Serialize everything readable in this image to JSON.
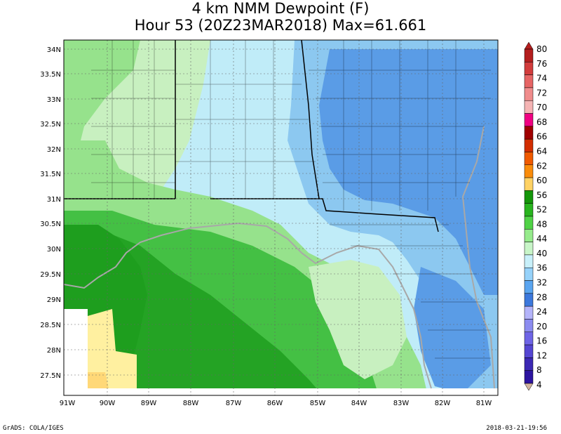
{
  "title": {
    "line1": "4 km NMM Dewpoint (F)",
    "line2": "Hour 53 (20Z23MAR2018) Max=61.661"
  },
  "map": {
    "lat_labels": [
      "34N",
      "33.5N",
      "33N",
      "32.5N",
      "32N",
      "31.5N",
      "31N",
      "30.5N",
      "30N",
      "29.5N",
      "29N",
      "28.5N",
      "28N",
      "27.5N"
    ],
    "lon_labels": [
      "91W",
      "90W",
      "89W",
      "88W",
      "87W",
      "86W",
      "85W",
      "84W",
      "83W",
      "82W",
      "81W"
    ],
    "colors": {
      "land_moist": "#1e9e1e",
      "land_green": "#44c044",
      "light_green": "#96e28c",
      "pale_green": "#c8f0c0",
      "light_blue": "#c0ecf8",
      "mid_blue": "#8cc8f0",
      "blue": "#5a9ce6",
      "gulf_yellow": "#fff0a0",
      "gulf_orange": "#ffd878",
      "coast_grey": "#a8a8a8",
      "border_black": "#000000"
    }
  },
  "colorbar": {
    "labels": [
      "80",
      "76",
      "74",
      "72",
      "70",
      "68",
      "66",
      "64",
      "62",
      "60",
      "56",
      "52",
      "48",
      "44",
      "40",
      "36",
      "32",
      "28",
      "24",
      "20",
      "16",
      "12",
      "8",
      "4"
    ],
    "colors": [
      "#b41e1e",
      "#d23c3c",
      "#e66464",
      "#f08c8c",
      "#f5b4b4",
      "#f00082",
      "#a00000",
      "#d22d00",
      "#f05a00",
      "#fa8c0a",
      "#ffd264",
      "#14960a",
      "#28b41e",
      "#50d246",
      "#96eb8c",
      "#c8f5c8",
      "#c8f0fa",
      "#96d2fa",
      "#5aa5f0",
      "#3c78dc",
      "#b4b4fa",
      "#8c8cf0",
      "#6e64e6",
      "#5546d2",
      "#3c28b4",
      "#2d14a0"
    ]
  },
  "footer": {
    "left": "GrADS: COLA/IGES",
    "right": "2018-03-21-19:56"
  }
}
